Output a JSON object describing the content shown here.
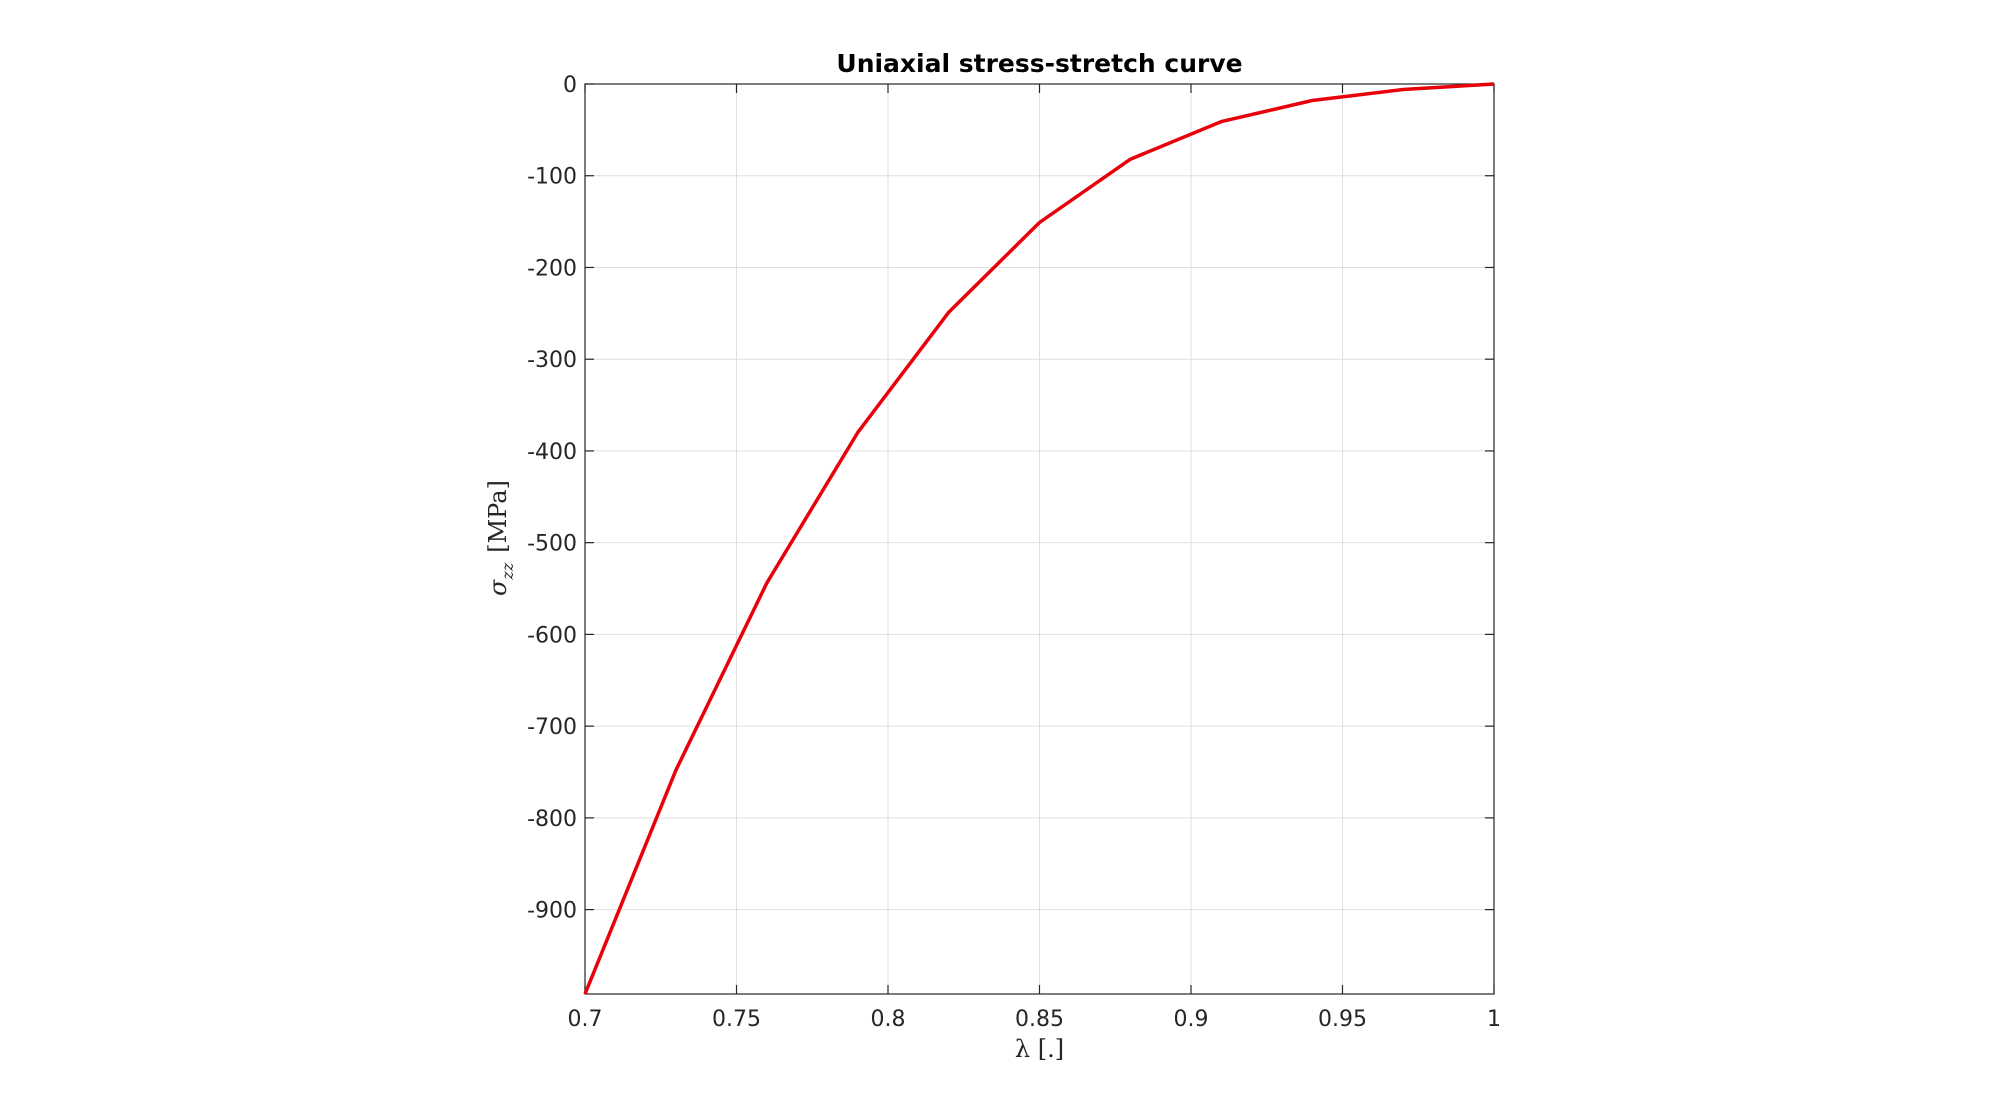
{
  "chart_data": {
    "type": "line",
    "title": "Uniaxial stress-stretch curve",
    "xlabel": "λ [.]",
    "ylabel": {
      "symbol": "σ",
      "subscript": "zz",
      "unit": "[MPa]"
    },
    "xlim": [
      0.7,
      1
    ],
    "ylim": [
      -992,
      0
    ],
    "xticks": [
      0.7,
      0.75,
      0.8,
      0.85,
      0.9,
      0.95,
      1
    ],
    "xtick_labels": [
      "0.7",
      "0.75",
      "0.8",
      "0.85",
      "0.9",
      "0.95",
      "1"
    ],
    "yticks": [
      0,
      -100,
      -200,
      -300,
      -400,
      -500,
      -600,
      -700,
      -800,
      -900
    ],
    "ytick_labels": [
      "0",
      "-100",
      "-200",
      "-300",
      "-400",
      "-500",
      "-600",
      "-700",
      "-800",
      "-900"
    ],
    "grid": true,
    "series": [
      {
        "color": "#e8000b",
        "x": [
          0.7,
          0.73,
          0.76,
          0.79,
          0.82,
          0.85,
          0.88,
          0.91,
          0.94,
          0.97,
          1.0
        ],
        "y": [
          -992,
          -748,
          -544,
          -380,
          -249,
          -151,
          -82,
          -41,
          -18,
          -6,
          0
        ]
      }
    ]
  }
}
